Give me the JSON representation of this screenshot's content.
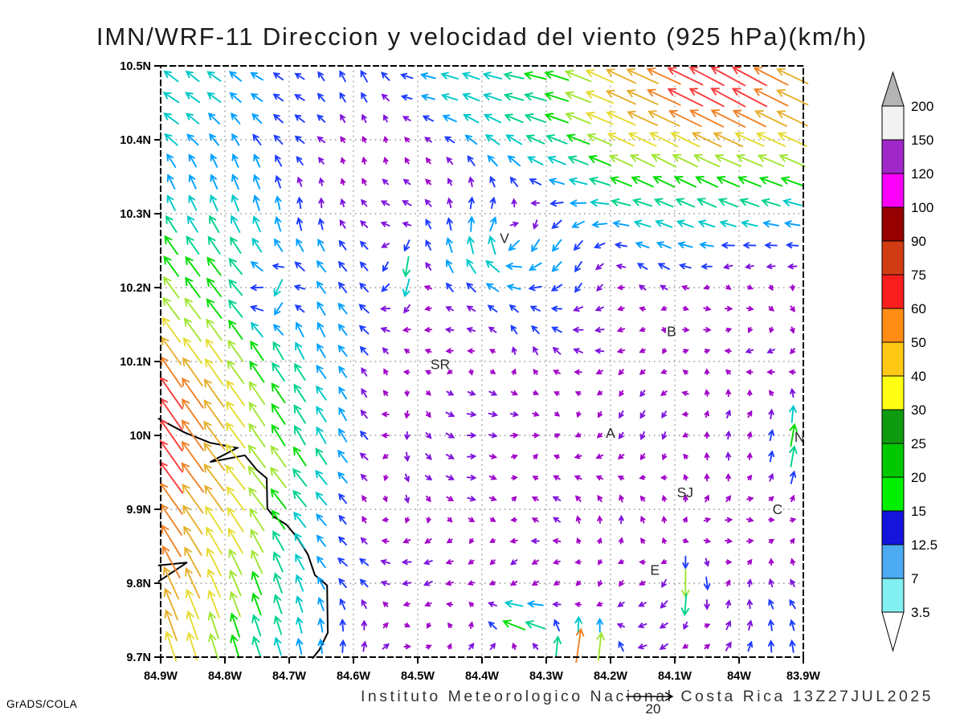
{
  "title": "IMN/WRF-11 Direccion y velocidad del viento (925 hPa)(km/h)",
  "footer": {
    "credit": "Instituto Meteorologico Nacional Costa Rica  13Z27JUL2025",
    "stamp": "GrADS/COLA",
    "ref_label": "20",
    "ref_value_kmh": 20
  },
  "chart_data": {
    "type": "vector_field_map",
    "title": "IMN/WRF-11 Direccion y velocidad del viento (925 hPa)(km/h)",
    "variable": "wind direction and speed",
    "level": "925 hPa",
    "units": "km/h",
    "valid_time": "13Z27JUL2025",
    "lon_range": [
      -84.9,
      -83.9
    ],
    "lat_range": [
      9.7,
      10.5
    ],
    "x_ticks": [
      "84.9W",
      "84.8W",
      "84.7W",
      "84.6W",
      "84.5W",
      "84.4W",
      "84.3W",
      "84.2W",
      "84.1W",
      "84W",
      "83.9W"
    ],
    "y_ticks": [
      "10.5N",
      "10.4N",
      "10.3N",
      "10.2N",
      "10.1N",
      "10N",
      "9.9N",
      "9.8N",
      "9.7N"
    ],
    "grid": "dotted, every 0.1 degree",
    "colorbar": {
      "labels": [
        "200",
        "150",
        "120",
        "100",
        "90",
        "75",
        "60",
        "50",
        "40",
        "30",
        "25",
        "20",
        "15",
        "12.5",
        "7",
        "3.5"
      ],
      "colors_top_to_bottom": [
        "#F2F2F2",
        "#A028C8",
        "#FA00FA",
        "#960000",
        "#D23C14",
        "#FA1E1E",
        "#FF8C14",
        "#FFC814",
        "#FFFF14",
        "#0F9B0F",
        "#00C800",
        "#00F000",
        "#1414DC",
        "#4BAAF0",
        "#82F0F0"
      ],
      "over_color": "#B4B4B4",
      "under_color": "#FFFFFF"
    },
    "city_labels": [
      {
        "text": "V",
        "lon": -84.365,
        "lat": 10.267
      },
      {
        "text": "SR",
        "lon": -84.465,
        "lat": 10.096
      },
      {
        "text": "B",
        "lon": -84.105,
        "lat": 10.141
      },
      {
        "text": "A",
        "lon": -84.2,
        "lat": 10.003
      },
      {
        "text": "SJ",
        "lon": -84.084,
        "lat": 9.923
      },
      {
        "text": "C",
        "lon": -83.94,
        "lat": 9.9
      },
      {
        "text": "E",
        "lon": -84.131,
        "lat": 9.818
      },
      {
        "text": "N",
        "lon": -83.906,
        "lat": 9.998
      }
    ],
    "coastline": [
      [
        [
          -84.904,
          10.023
        ],
        [
          -84.863,
          10.004
        ],
        [
          -84.823,
          9.99
        ],
        [
          -84.781,
          9.983
        ],
        [
          -84.823,
          9.964
        ],
        [
          -84.769,
          9.973
        ],
        [
          -84.75,
          9.953
        ],
        [
          -84.735,
          9.942
        ],
        [
          -84.734,
          9.901
        ],
        [
          -84.724,
          9.89
        ],
        [
          -84.704,
          9.879
        ],
        [
          -84.686,
          9.86
        ],
        [
          -84.671,
          9.839
        ],
        [
          -84.66,
          9.811
        ],
        [
          -84.641,
          9.797
        ],
        [
          -84.64,
          9.733
        ],
        [
          -84.653,
          9.71
        ],
        [
          -84.664,
          9.698
        ]
      ],
      [
        [
          -84.904,
          9.824
        ],
        [
          -84.859,
          9.828
        ],
        [
          -84.904,
          9.802
        ]
      ]
    ],
    "wind_model": {
      "note": "procedural approximation of the plotted 30x28 wind-vector grid; speeds km/h",
      "seed": 7,
      "nx": 30,
      "ny": 28,
      "levels": [
        2.8,
        5,
        7.5,
        10,
        12.5,
        15,
        17.5,
        20,
        23,
        26,
        29
      ],
      "palette": [
        "#A000C8",
        "#7E14DC",
        "#1E3CFF",
        "#00A0FF",
        "#00C8C8",
        "#00D28C",
        "#00DC00",
        "#A0E632",
        "#E6DC32",
        "#E6AF2D",
        "#F08228",
        "#FA3C3C"
      ],
      "len_base": 4,
      "len_per_speed": 1.5,
      "len_max": 47,
      "chaos": {
        "mag_min": 1.5,
        "mag_max": 13,
        "smooth_passes": 2,
        "post_scale": 1.7
      },
      "trades": {
        "u": -0.88,
        "v": 0.42,
        "amp": 24,
        "fx0": 0.28,
        "fxw": 0.45,
        "fy0": 0.4,
        "fyw": 0.3
      },
      "coast": {
        "amp": 30,
        "fx0": 0.36,
        "u0": -0.55,
        "v0": 0.8,
        "u1": -0.27,
        "v1": 0.95
      },
      "swirl": {
        "fx": 0.54,
        "fy": 0.3,
        "sigma": 0.1,
        "amp": 9
      },
      "hotspots": [
        {
          "x": 0.655,
          "y": 0.985,
          "sx": 0.035,
          "sy": 0.03,
          "amp": 30,
          "u": 0.25,
          "v": 0.95
        },
        {
          "x": 0.56,
          "y": 0.935,
          "sx": 0.03,
          "sy": 0.025,
          "amp": 22,
          "u": -0.92,
          "v": 0.3
        },
        {
          "x": 0.822,
          "y": 0.885,
          "sx": 0.02,
          "sy": 0.03,
          "amp": 22,
          "u": 0.05,
          "v": -1.0
        },
        {
          "x": 0.18,
          "y": 0.39,
          "sx": 0.025,
          "sy": 0.035,
          "amp": 22,
          "u": 0.1,
          "v": -1.0
        },
        {
          "x": 0.375,
          "y": 0.345,
          "sx": 0.02,
          "sy": 0.04,
          "amp": 20,
          "u": 0.0,
          "v": -1.0
        },
        {
          "x": 0.88,
          "y": 0.03,
          "sx": 0.05,
          "sy": 0.035,
          "amp": 14,
          "u": -0.85,
          "v": 0.5
        },
        {
          "x": 1.0,
          "y": 0.63,
          "sx": 0.03,
          "sy": 0.05,
          "amp": 18,
          "u": 0.1,
          "v": 0.95
        }
      ]
    }
  }
}
